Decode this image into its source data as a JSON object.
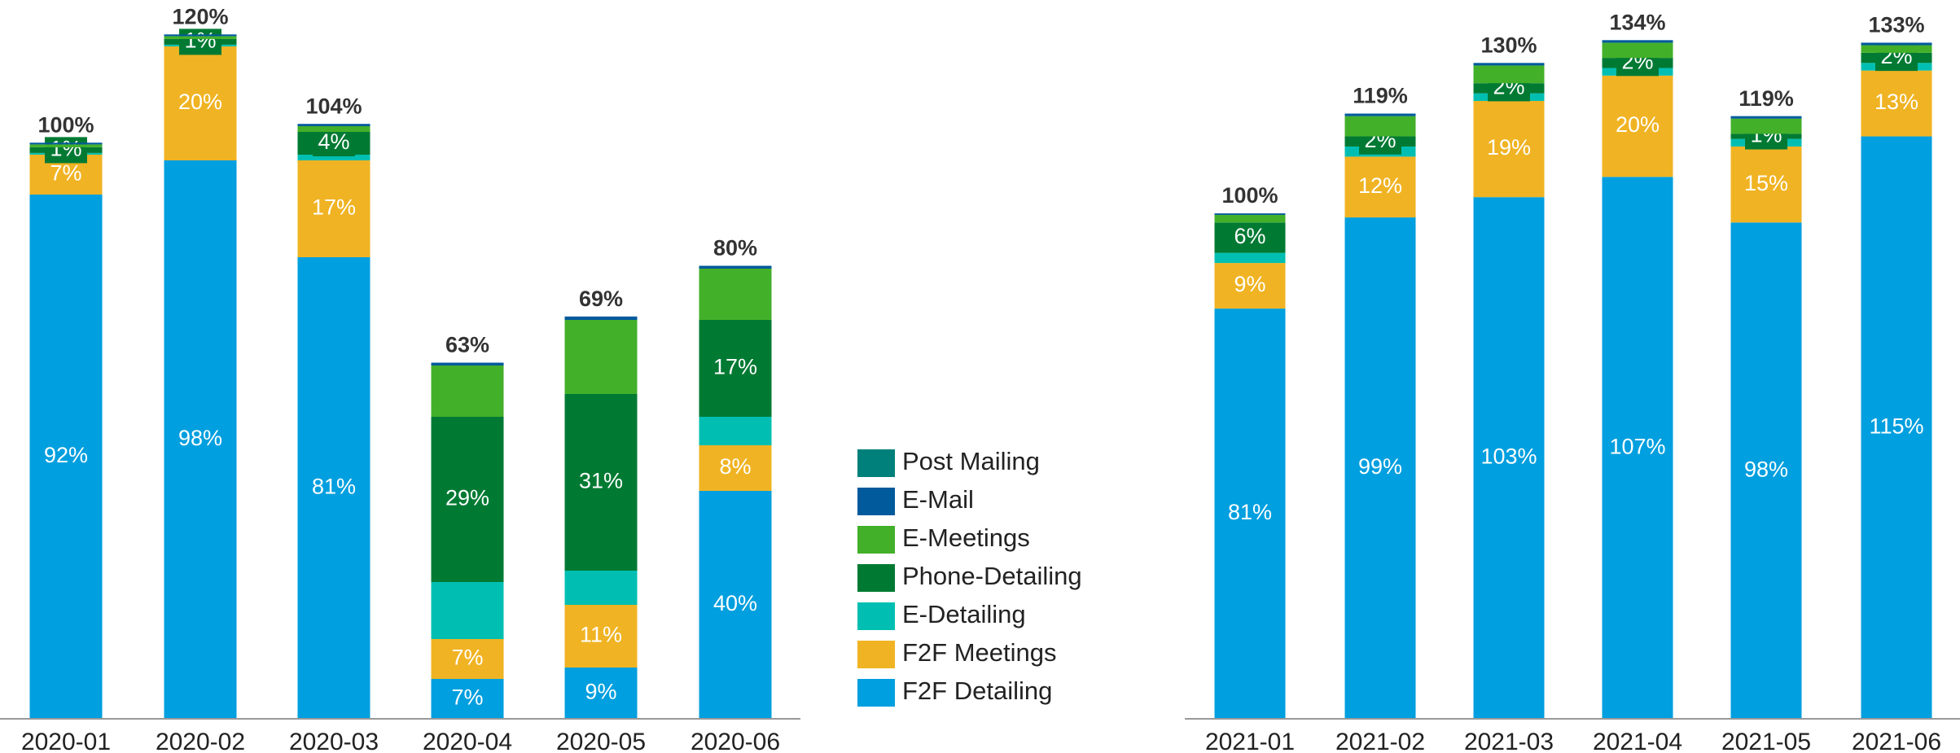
{
  "chart_data": [
    {
      "type": "bar",
      "stacked": true,
      "categories": [
        "2020-01",
        "2020-02",
        "2020-03",
        "2020-04",
        "2020-05",
        "2020-06"
      ],
      "ylim": [
        0,
        125
      ],
      "series": [
        {
          "name": "F2F Detailing",
          "color": "#009fdf",
          "values": [
            92,
            98,
            81,
            7,
            9,
            40
          ],
          "value_labels": [
            "92%",
            "98%",
            "81%",
            "7%",
            "9%",
            "40%"
          ]
        },
        {
          "name": "F2F Meetings",
          "color": "#f0b323",
          "values": [
            7,
            20,
            17,
            7,
            11,
            8
          ],
          "value_labels": [
            "7%",
            "20%",
            "17%",
            "7%",
            "11%",
            "8%"
          ]
        },
        {
          "name": "E-Detailing",
          "color": "#00bfb2",
          "values": [
            0.3,
            0.3,
            1,
            10,
            6,
            5
          ],
          "value_labels": [
            null,
            null,
            null,
            null,
            null,
            null
          ]
        },
        {
          "name": "Phone-Detailing",
          "color": "#007a33",
          "values": [
            1,
            1,
            4,
            29,
            31,
            17
          ],
          "value_labels": [
            "1%",
            "1%",
            "4%",
            "29%",
            "31%",
            "17%"
          ]
        },
        {
          "name": "E-Meetings",
          "color": "#43b02a",
          "values": [
            0.5,
            0.5,
            1,
            9,
            13,
            9
          ],
          "value_labels": [
            null,
            null,
            null,
            null,
            null,
            null
          ]
        },
        {
          "name": "E-Mail",
          "color": "#005a9c",
          "values": [
            0.3,
            0.3,
            0.4,
            0.5,
            0.6,
            0.5
          ],
          "value_labels": [
            null,
            null,
            null,
            null,
            null,
            null
          ]
        },
        {
          "name": "Post Mailing",
          "color": "#00807a",
          "values": [
            0,
            0,
            0,
            0,
            0,
            0
          ],
          "value_labels": [
            null,
            null,
            null,
            null,
            null,
            null
          ]
        }
      ],
      "totals": {
        "values": [
          100,
          120,
          104,
          63,
          69,
          80
        ],
        "value_labels": [
          "100%",
          "120%",
          "104%",
          "63%",
          "69%",
          "80%"
        ]
      }
    },
    {
      "type": "bar",
      "stacked": true,
      "categories": [
        "2021-01",
        "2021-02",
        "2021-03",
        "2021-04",
        "2021-05",
        "2021-06"
      ],
      "ylim": [
        0,
        140
      ],
      "series": [
        {
          "name": "F2F Detailing",
          "color": "#009fdf",
          "values": [
            81,
            99,
            103,
            107,
            98,
            115
          ],
          "value_labels": [
            "81%",
            "99%",
            "103%",
            "107%",
            "98%",
            "115%"
          ]
        },
        {
          "name": "F2F Meetings",
          "color": "#f0b323",
          "values": [
            9,
            12,
            19,
            20,
            15,
            13
          ],
          "value_labels": [
            "9%",
            "12%",
            "19%",
            "20%",
            "15%",
            "13%"
          ]
        },
        {
          "name": "E-Detailing",
          "color": "#00bfb2",
          "values": [
            2,
            2,
            1.5,
            1.5,
            1.5,
            1.5
          ],
          "value_labels": [
            null,
            null,
            null,
            null,
            null,
            null
          ]
        },
        {
          "name": "Phone-Detailing",
          "color": "#007a33",
          "values": [
            6,
            2,
            2,
            2,
            1,
            2
          ],
          "value_labels": [
            "6%",
            "2%",
            "2%",
            "2%",
            "1%",
            "2%"
          ]
        },
        {
          "name": "E-Meetings",
          "color": "#43b02a",
          "values": [
            1.5,
            4,
            3.5,
            3,
            3,
            1.5
          ],
          "value_labels": [
            null,
            null,
            null,
            null,
            null,
            null
          ]
        },
        {
          "name": "E-Mail",
          "color": "#005a9c",
          "values": [
            0.3,
            0.5,
            0.5,
            0.5,
            0.5,
            0.5
          ],
          "value_labels": [
            null,
            null,
            null,
            null,
            null,
            null
          ]
        },
        {
          "name": "Post Mailing",
          "color": "#00807a",
          "values": [
            0,
            0,
            0,
            0,
            0,
            0
          ],
          "value_labels": [
            null,
            null,
            null,
            null,
            null,
            null
          ]
        }
      ],
      "totals": {
        "values": [
          100,
          119,
          130,
          134,
          119,
          133
        ],
        "value_labels": [
          "100%",
          "119%",
          "130%",
          "134%",
          "119%",
          "133%"
        ]
      }
    }
  ]
}
